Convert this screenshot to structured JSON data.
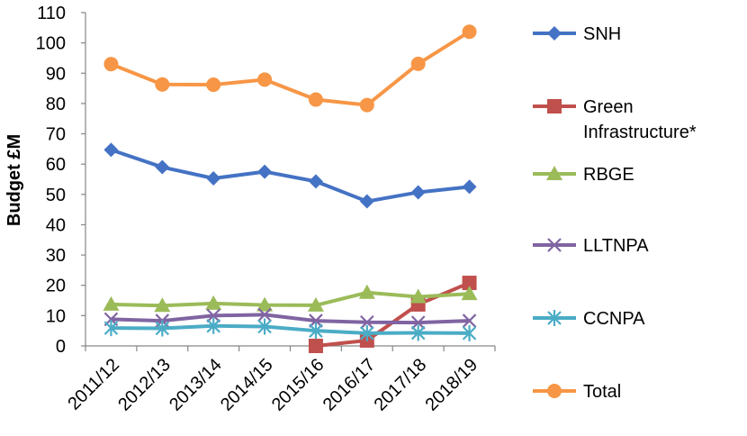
{
  "chart_data": {
    "type": "line",
    "title": "",
    "xlabel": "",
    "ylabel": "Budget   £M",
    "ylim": [
      0,
      110
    ],
    "yticks": [
      0,
      10,
      20,
      30,
      40,
      50,
      60,
      70,
      80,
      90,
      100,
      110
    ],
    "grid": false,
    "legend_position": "right",
    "categories": [
      "2011/12",
      "2012/13",
      "2013/14",
      "2014/15",
      "2015/16",
      "2016/17",
      "2017/18",
      "2018/19"
    ],
    "series": [
      {
        "name": "SNH",
        "legend_lines": [
          "SNH"
        ],
        "color": "#4472C4",
        "marker": "diamond",
        "values": [
          64.7,
          59.0,
          55.3,
          57.5,
          54.3,
          47.7,
          50.7,
          52.5
        ]
      },
      {
        "name": "Green Infrastructure*",
        "legend_lines": [
          "Green",
          "Infrastructure*"
        ],
        "color": "#C0504D",
        "marker": "square",
        "values": [
          null,
          null,
          null,
          null,
          0.0,
          1.8,
          13.7,
          20.8
        ]
      },
      {
        "name": "RBGE",
        "legend_lines": [
          "RBGE"
        ],
        "color": "#9BBB59",
        "marker": "triangle",
        "values": [
          13.7,
          13.3,
          14.0,
          13.5,
          13.4,
          17.6,
          16.2,
          17.2
        ]
      },
      {
        "name": "LLTNPA",
        "legend_lines": [
          "LLTNPA"
        ],
        "color": "#8064A2",
        "marker": "x",
        "values": [
          8.8,
          8.3,
          10.0,
          10.3,
          8.3,
          7.8,
          7.7,
          8.3
        ]
      },
      {
        "name": "CCNPA",
        "legend_lines": [
          "CCNPA"
        ],
        "color": "#4BACC6",
        "marker": "asterisk",
        "values": [
          5.9,
          5.8,
          6.6,
          6.4,
          5.0,
          4.2,
          4.3,
          4.2
        ]
      },
      {
        "name": "Total",
        "legend_lines": [
          "Total"
        ],
        "color": "#F79646",
        "marker": "circle",
        "values": [
          93.0,
          86.3,
          86.2,
          87.9,
          81.3,
          79.5,
          93.1,
          103.7
        ]
      }
    ]
  }
}
